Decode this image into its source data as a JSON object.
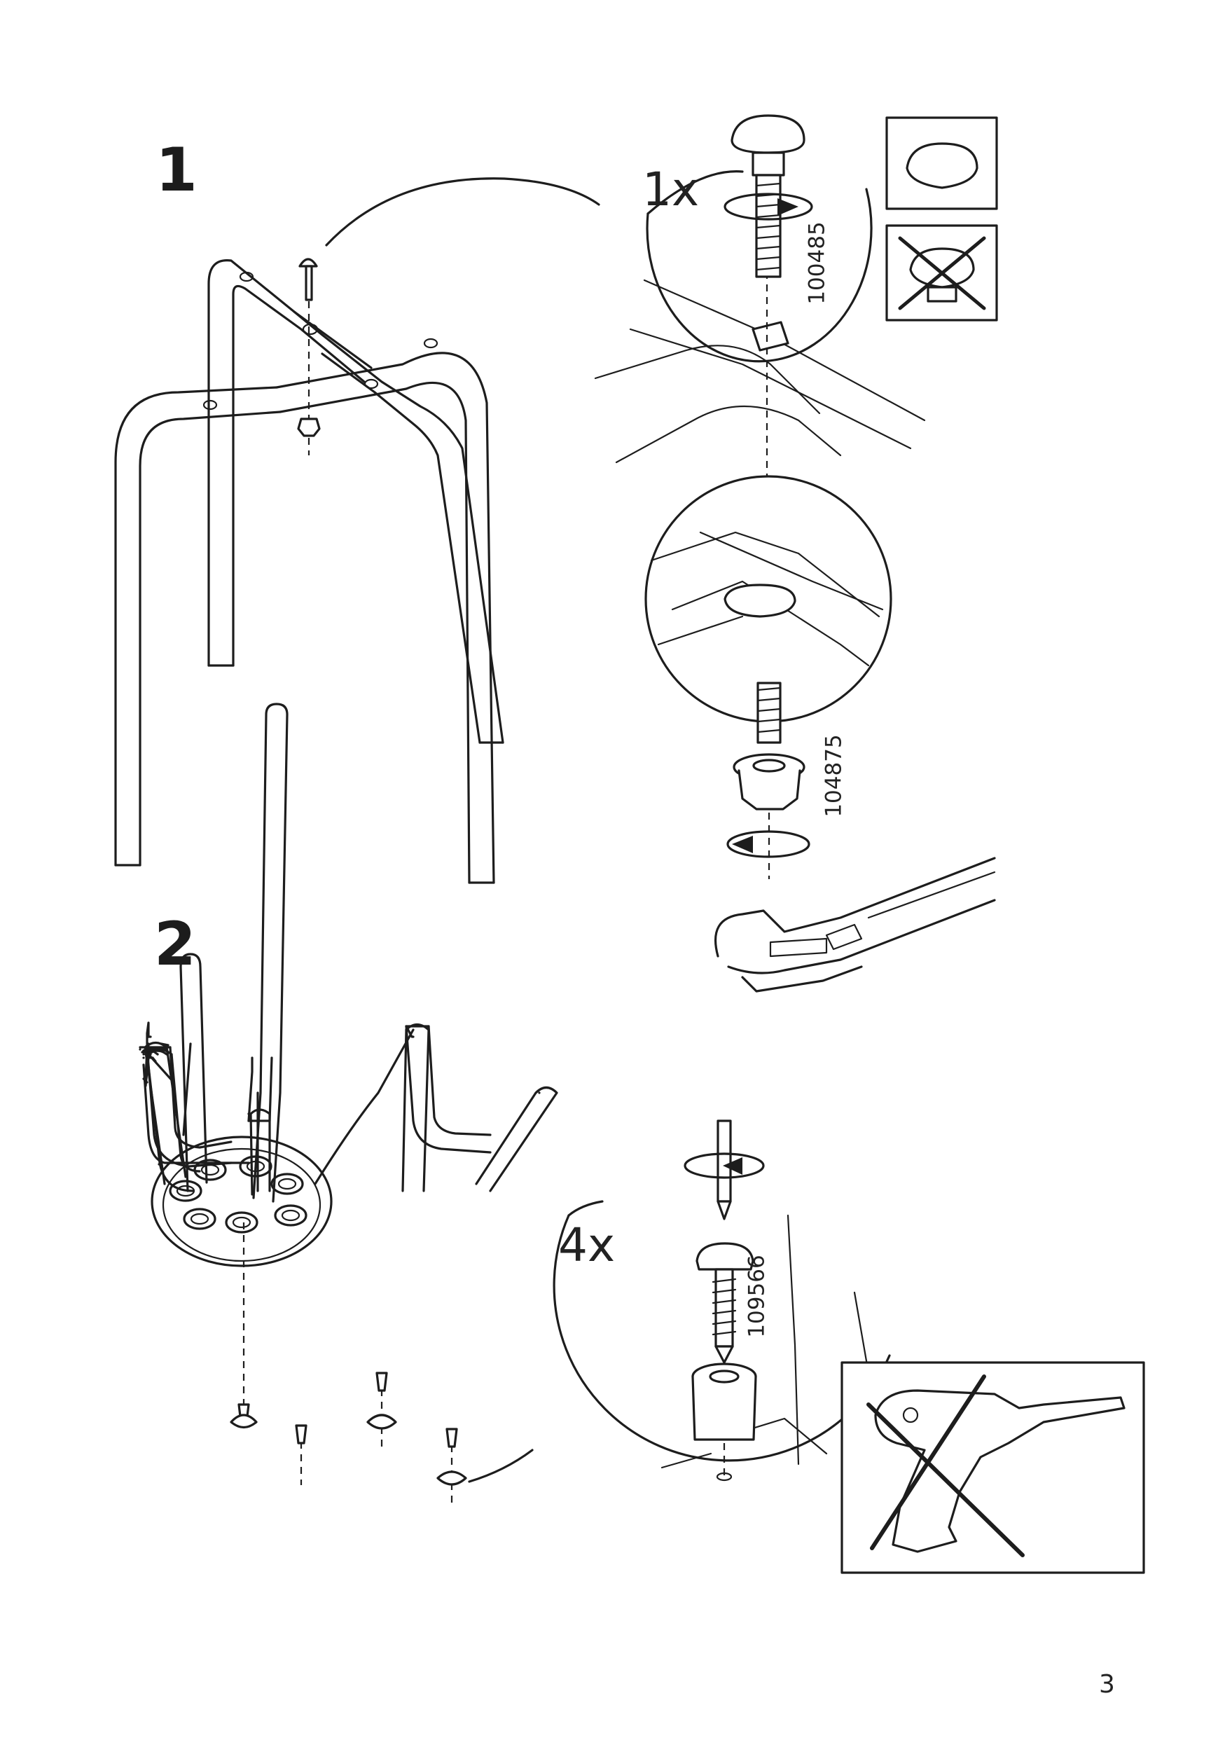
{
  "steps": [
    {
      "number": "1",
      "quantity": "1x",
      "parts": [
        "100485",
        "104875"
      ],
      "icons": [
        "carriage-bolt-icon",
        "nut-icon",
        "wrench-icon",
        "correct-bolt-head-icon",
        "wrong-bolt-head-icon"
      ]
    },
    {
      "number": "2",
      "quantity": "4x",
      "parts": [
        "109566"
      ],
      "icons": [
        "screw-icon",
        "screwdriver-icon",
        "spacer-icon",
        "no-power-drill-icon"
      ]
    }
  ],
  "page_number": "3"
}
